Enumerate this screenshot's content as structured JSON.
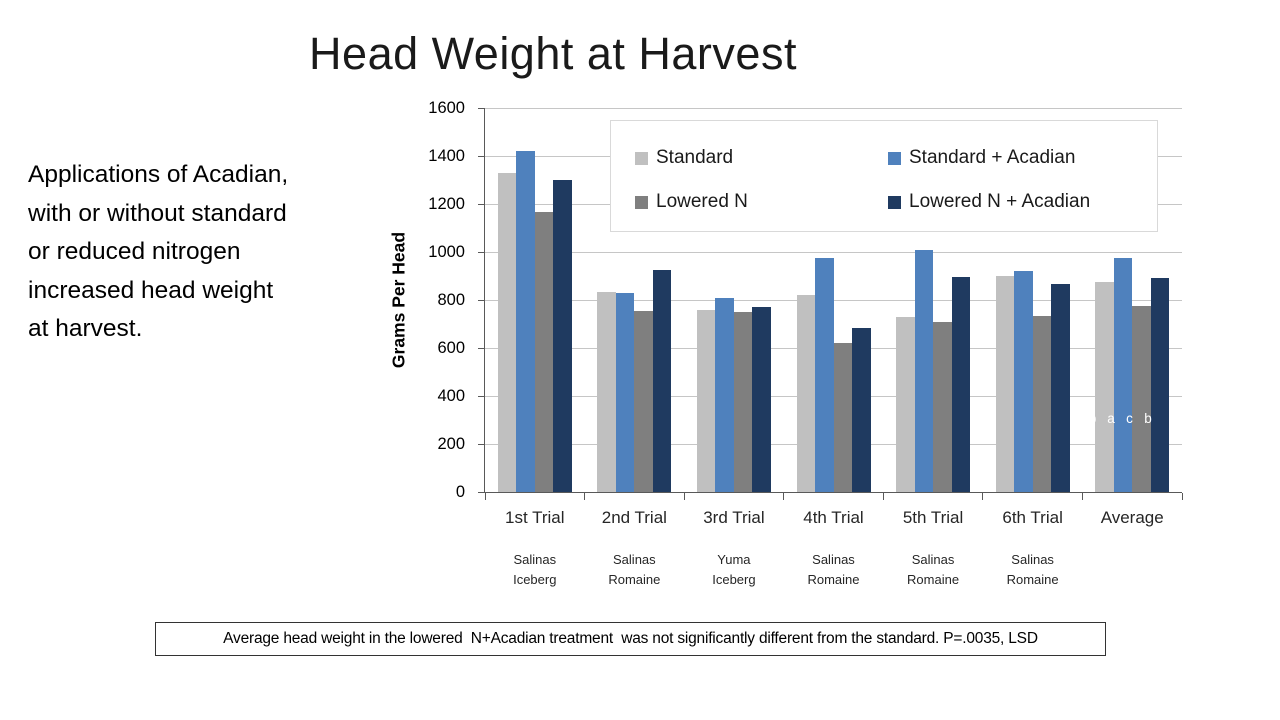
{
  "slide": {
    "title": "Head Weight at Harvest",
    "left_text": "Applications of Acadian, with or without standard or reduced nitrogen increased head weight at harvest.",
    "footer": "Average head weight in the lowered  N+Acadian treatment  was not significantly different from the standard. P=.0035, LSD"
  },
  "chart_data": {
    "type": "bar",
    "title": "Head Weight at Harvest",
    "xlabel": "",
    "ylabel": "Grams Per Head",
    "ylim": [
      0,
      1600
    ],
    "yticks": [
      0,
      200,
      400,
      600,
      800,
      1000,
      1200,
      1400,
      1600
    ],
    "grid": true,
    "legend_position": "top-inside",
    "categories": [
      "1st Trial",
      "2nd Trial",
      "3rd Trial",
      "4th Trial",
      "5th Trial",
      "6th Trial",
      "Average"
    ],
    "category_sublabels": [
      [
        "Salinas",
        "Iceberg"
      ],
      [
        "Salinas",
        "Romaine"
      ],
      [
        "Yuma",
        "Iceberg"
      ],
      [
        "Salinas",
        "Romaine"
      ],
      [
        "Salinas",
        "Romaine"
      ],
      [
        "Salinas",
        "Romaine"
      ],
      []
    ],
    "series": [
      {
        "name": "Standard",
        "color": "#c0c0c0",
        "values": [
          1330,
          835,
          760,
          820,
          730,
          900,
          875
        ]
      },
      {
        "name": "Standard + Acadian",
        "color": "#4f81bd",
        "values": [
          1420,
          830,
          810,
          975,
          1010,
          920,
          975
        ]
      },
      {
        "name": "Lowered N",
        "color": "#7f7f7f",
        "values": [
          1165,
          755,
          750,
          620,
          710,
          735,
          775
        ]
      },
      {
        "name": "Lowered N + Acadian",
        "color": "#1f3a60",
        "values": [
          1300,
          925,
          770,
          685,
          895,
          865,
          890
        ]
      }
    ],
    "annotations": {
      "group": "Average",
      "letters": [
        "b",
        "a",
        "c",
        "b"
      ],
      "at_value": 300,
      "color": "#ffffff"
    }
  }
}
